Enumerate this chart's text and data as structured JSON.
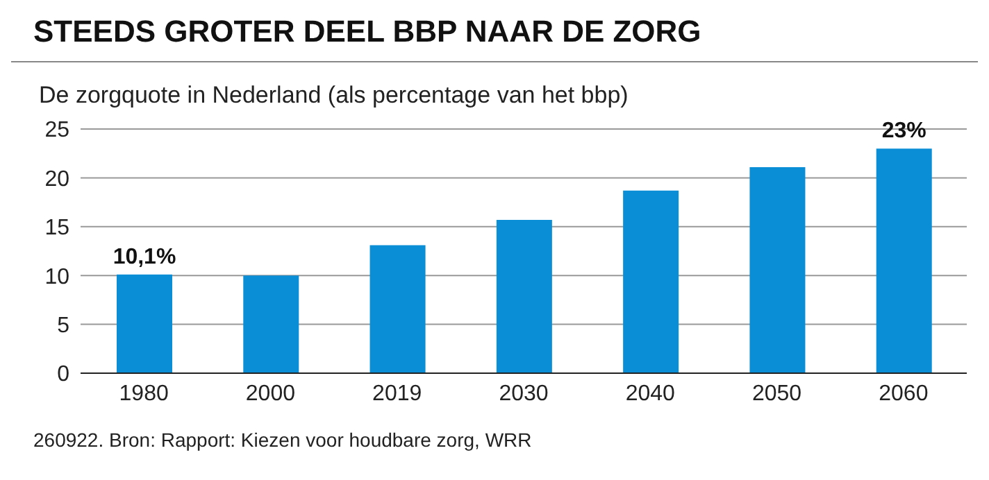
{
  "chart_data": {
    "type": "bar",
    "title": "STEEDS GROTER DEEL BBP NAAR DE ZORG",
    "subtitle": "De zorgquote in Nederland (als percentage van het bbp)",
    "annotations": [
      "260922. Bron: Rapport: Kiezen voor houdbare zorg, WRR"
    ],
    "categories": [
      "1980",
      "2000",
      "2019",
      "2030",
      "2040",
      "2050",
      "2060"
    ],
    "values": [
      10.1,
      10.0,
      13.1,
      15.7,
      18.7,
      21.1,
      23
    ],
    "value_labels": [
      "10,1%",
      null,
      null,
      null,
      null,
      null,
      "23%"
    ],
    "color": "#0a8ed6",
    "ylim": [
      0,
      25
    ],
    "yticks": [
      0,
      5,
      10,
      15,
      20,
      25
    ],
    "grid": "y"
  }
}
